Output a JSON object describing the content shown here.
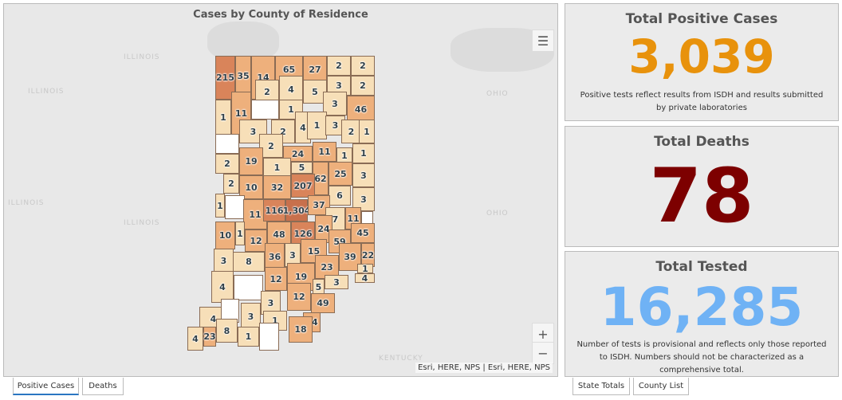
{
  "map": {
    "title": "Cases by County of Residence",
    "regions": [
      "ILLINOIS",
      "ILLINOIS",
      "ILLINOIS",
      "ILLINOIS",
      "OHIO",
      "OHIO",
      "KENTUCKY"
    ],
    "attribution": "Esri, HERE, NPS | Esri, HERE, NPS",
    "zoom_in": "+",
    "zoom_out": "−",
    "legend_icon": "list-legend-icon",
    "colors": {
      "none": "#ffffff",
      "low": "#f7dfb8",
      "mid": "#eeb07c",
      "high": "#d9845a",
      "top": "#c8704c"
    },
    "counties": [
      "215",
      "35",
      "14",
      "65",
      "27",
      "2",
      "2",
      "2",
      "4",
      "5",
      "3",
      "2",
      "",
      "1",
      "11",
      "1",
      "3",
      "46",
      "3",
      "2",
      "4",
      "1",
      "3",
      "2",
      "1",
      "",
      "2",
      "24",
      "11",
      "1",
      "1",
      "2",
      "19",
      "1",
      "5",
      "62",
      "25",
      "3",
      "2",
      "10",
      "32",
      "207",
      "6",
      "3",
      "1",
      "",
      "11",
      "116",
      "1,304",
      "37",
      "7",
      "11",
      "",
      "10",
      "1",
      "12",
      "48",
      "126",
      "24",
      "45",
      "59",
      "3",
      "8",
      "36",
      "3",
      "15",
      "39",
      "22",
      "23",
      "12",
      "19",
      "1",
      "4",
      "4",
      "",
      "3",
      "12",
      "5",
      "3",
      "49",
      "4",
      "",
      "3",
      "1",
      "34",
      "18",
      "4",
      "23",
      "8",
      "1",
      ""
    ]
  },
  "tabs_left": [
    "Positive Cases",
    "Deaths"
  ],
  "tabs_right": [
    "State Totals",
    "County List"
  ],
  "cards": [
    {
      "title": "Total Positive Cases",
      "value": "3,039",
      "color": "#e8920c",
      "note": "Positive tests reflect results from ISDH and results submitted by private laboratories"
    },
    {
      "title": "Total Deaths",
      "value": "78",
      "color": "#7d0000",
      "note": ""
    },
    {
      "title": "Total Tested",
      "value": "16,285",
      "color": "#6fb2f5",
      "note": "Number of tests is provisional and reflects only those reported to ISDH. Numbers should not be characterized as a comprehensive total."
    }
  ]
}
